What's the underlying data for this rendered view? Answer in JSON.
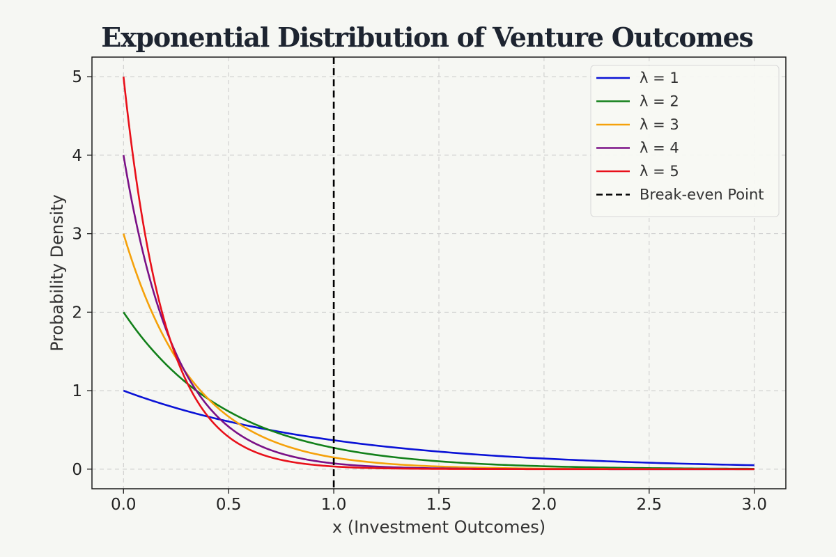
{
  "chart_data": {
    "type": "line",
    "title": "Exponential Distribution of Venture Outcomes",
    "xlabel": "x (Investment Outcomes)",
    "ylabel": "Probability Density",
    "xlim": [
      -0.15,
      3.15
    ],
    "ylim": [
      -0.25,
      5.25
    ],
    "x_ticks": [
      0.0,
      0.5,
      1.0,
      1.5,
      2.0,
      2.5,
      3.0
    ],
    "x_tick_labels": [
      "0.0",
      "0.5",
      "1.0",
      "1.5",
      "2.0",
      "2.5",
      "3.0"
    ],
    "y_ticks": [
      0,
      1,
      2,
      3,
      4,
      5
    ],
    "y_tick_labels": [
      "0",
      "1",
      "2",
      "3",
      "4",
      "5"
    ],
    "grid": true,
    "legend_position": "top-right",
    "x": [
      0.0,
      0.1,
      0.2,
      0.3,
      0.4,
      0.5,
      0.6,
      0.7,
      0.8,
      0.9,
      1.0,
      1.2,
      1.4,
      1.6,
      1.8,
      2.0,
      2.2,
      2.4,
      2.6,
      2.8,
      3.0
    ],
    "series": [
      {
        "name": "λ = 1",
        "color": "#0a12d6",
        "values": [
          1.0,
          0.905,
          0.819,
          0.741,
          0.67,
          0.607,
          0.549,
          0.497,
          0.449,
          0.407,
          0.368,
          0.301,
          0.247,
          0.202,
          0.165,
          0.135,
          0.111,
          0.091,
          0.074,
          0.061,
          0.05
        ]
      },
      {
        "name": "λ = 2",
        "color": "#12801a",
        "values": [
          2.0,
          1.637,
          1.341,
          1.098,
          0.899,
          0.736,
          0.602,
          0.493,
          0.404,
          0.331,
          0.271,
          0.181,
          0.122,
          0.082,
          0.055,
          0.037,
          0.025,
          0.016,
          0.011,
          0.007,
          0.005
        ]
      },
      {
        "name": "λ = 3",
        "color": "#f5a10a",
        "values": [
          3.0,
          2.222,
          1.646,
          1.22,
          0.904,
          0.669,
          0.496,
          0.367,
          0.272,
          0.201,
          0.149,
          0.082,
          0.045,
          0.025,
          0.014,
          0.007,
          0.004,
          0.002,
          0.001,
          0.001,
          0.0
        ]
      },
      {
        "name": "λ = 4",
        "color": "#7a1086",
        "values": [
          4.0,
          2.681,
          1.797,
          1.205,
          0.808,
          0.541,
          0.363,
          0.243,
          0.163,
          0.109,
          0.073,
          0.033,
          0.015,
          0.007,
          0.003,
          0.001,
          0.001,
          0.0,
          0.0,
          0.0,
          0.0
        ]
      },
      {
        "name": "λ = 5",
        "color": "#e8101a",
        "values": [
          5.0,
          3.033,
          1.839,
          1.116,
          0.677,
          0.41,
          0.249,
          0.151,
          0.092,
          0.056,
          0.034,
          0.012,
          0.005,
          0.002,
          0.001,
          0.0,
          0.0,
          0.0,
          0.0,
          0.0,
          0.0
        ]
      }
    ],
    "vlines": [
      {
        "name": "Break-even Point",
        "x": 1.0,
        "color": "#000000",
        "style": "dashed"
      }
    ]
  }
}
